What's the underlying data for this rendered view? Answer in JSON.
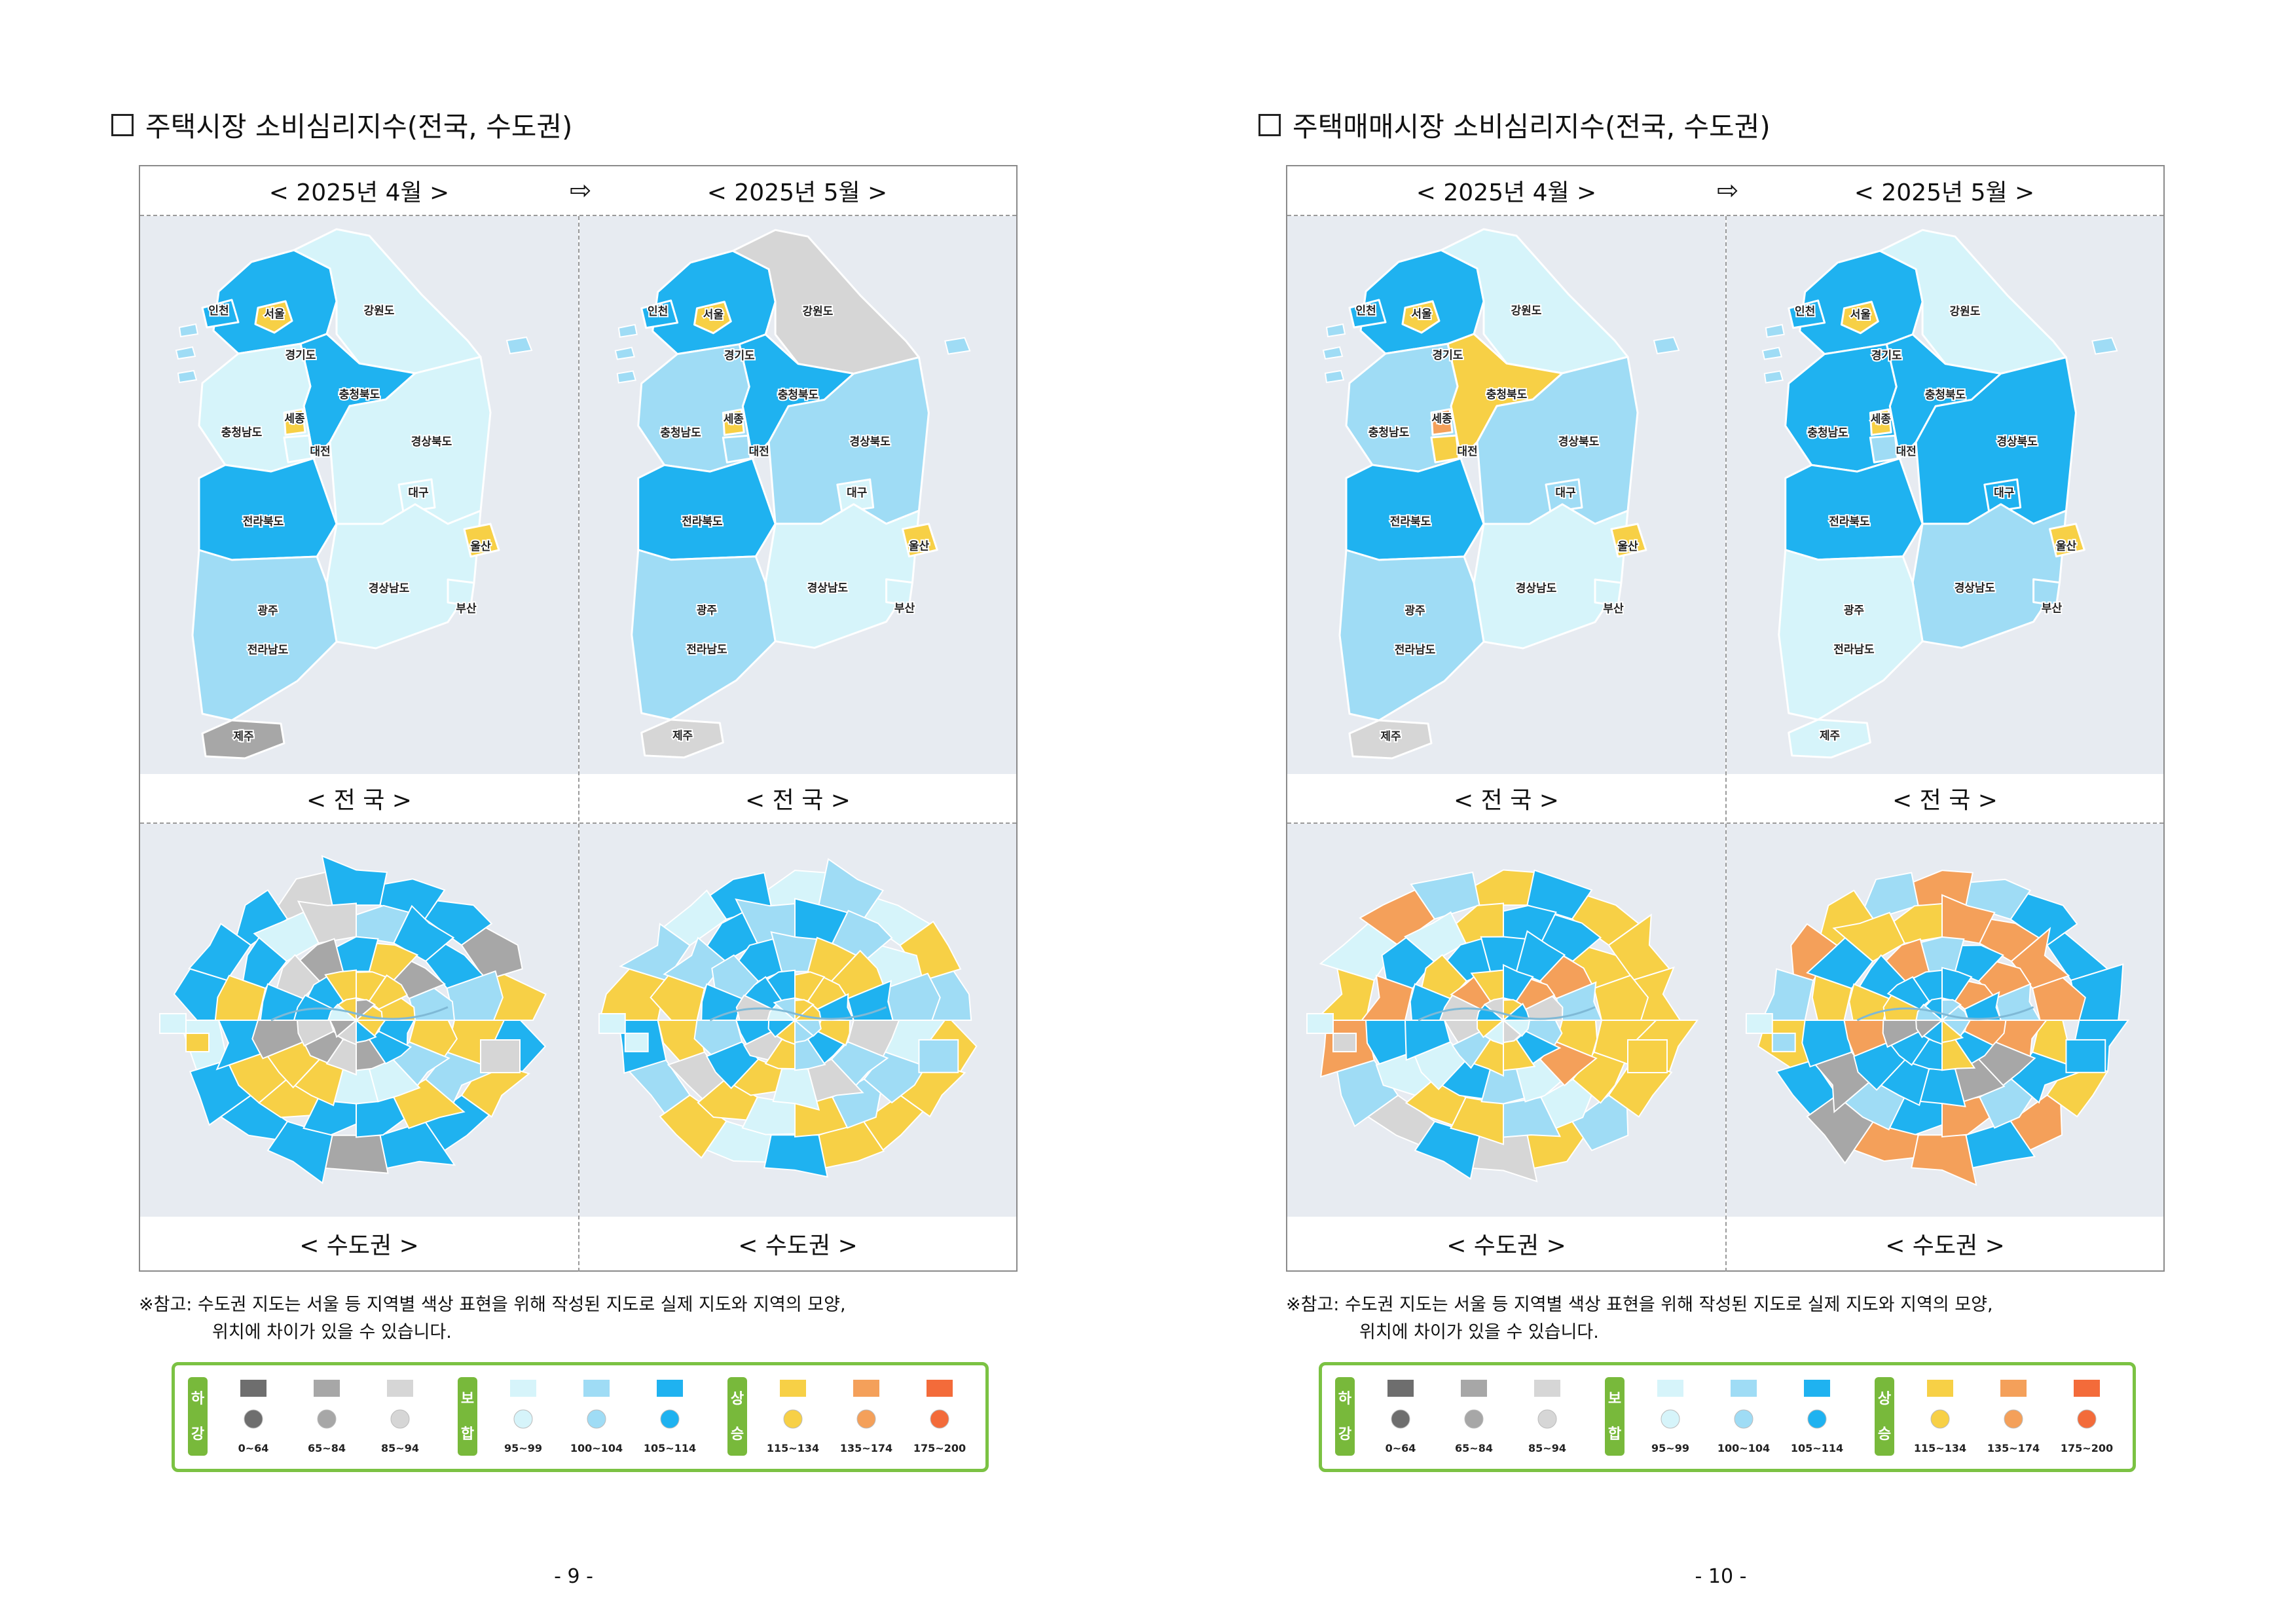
{
  "pages": [
    {
      "title": "주택시장 소비심리지수(전국, 수도권)",
      "col_headers": [
        "< 2025년 4월 >",
        "< 2025년 5월 >"
      ],
      "arrow": "⇨",
      "row_captions": [
        "< 전  국 >",
        "< 수도권 >"
      ],
      "note_line1": "※참고: 수도권 지도는 서울 등 지역별 색상 표현을 위해 작성된 지도로 실제 지도와 지역의 모양,",
      "note_line2": "위치에 차이가 있을 수 있습니다.",
      "page_number": "- 9 -",
      "national_maps": [
        {
          "인천": "L3",
          "서울": "Y1",
          "경기도": "L3",
          "강원도": "L1",
          "충청북도": "L3",
          "세종": "Y1",
          "충청남도": "L1",
          "대전": "L1",
          "경상북도": "L1",
          "대구": "L1",
          "전라북도": "L3",
          "울산": "Y1",
          "경상남도": "L1",
          "부산": "L1",
          "광주": "L2",
          "전라남도": "L2",
          "제주": "G2"
        },
        {
          "인천": "L3",
          "서울": "Y1",
          "경기도": "L3",
          "강원도": "G3",
          "충청북도": "L3",
          "세종": "Y1",
          "충청남도": "L2",
          "대전": "L2",
          "경상북도": "L2",
          "대구": "L1",
          "전라북도": "L3",
          "울산": "Y1",
          "경상남도": "L1",
          "부산": "L1",
          "광주": "L2",
          "전라남도": "L2",
          "제주": "G3"
        }
      ],
      "metro_maps": [
        "p9a",
        "p9b"
      ]
    },
    {
      "title": "주택매매시장 소비심리지수(전국, 수도권)",
      "col_headers": [
        "< 2025년 4월 >",
        "< 2025년 5월 >"
      ],
      "arrow": "⇨",
      "row_captions": [
        "< 전  국 >",
        "< 수도권 >"
      ],
      "note_line1": "※참고: 수도권 지도는 서울 등 지역별 색상 표현을 위해 작성된 지도로 실제 지도와 지역의 모양,",
      "note_line2": "위치에 차이가 있을 수 있습니다.",
      "page_number": "- 10 -",
      "national_maps": [
        {
          "인천": "L3",
          "서울": "Y1",
          "경기도": "L3",
          "강원도": "L1",
          "충청북도": "Y1",
          "세종": "Y2",
          "충청남도": "L2",
          "대전": "Y1",
          "경상북도": "L2",
          "대구": "L2",
          "전라북도": "L3",
          "울산": "Y1",
          "경상남도": "L1",
          "부산": "L1",
          "광주": "L2",
          "전라남도": "L2",
          "제주": "G3"
        },
        {
          "인천": "L3",
          "서울": "Y1",
          "경기도": "L3",
          "강원도": "L1",
          "충청북도": "L3",
          "세종": "Y1",
          "충청남도": "L3",
          "대전": "L2",
          "경상북도": "L3",
          "대구": "L3",
          "전라북도": "L3",
          "울산": "Y1",
          "경상남도": "L2",
          "부산": "L2",
          "광주": "L1",
          "전라남도": "L1",
          "제주": "L1"
        }
      ],
      "metro_maps": [
        "p10a",
        "p10b"
      ]
    }
  ],
  "legend": {
    "groups": [
      {
        "label_top": "하",
        "label_bottom": "강",
        "items": [
          {
            "range": "0~64",
            "color": "#6e6e6e"
          },
          {
            "range": "65~84",
            "color": "#a7a7a7"
          },
          {
            "range": "85~94",
            "color": "#d6d6d6"
          }
        ]
      },
      {
        "label_top": "보",
        "label_bottom": "합",
        "items": [
          {
            "range": "95~99",
            "color": "#d6f4fa"
          },
          {
            "range": "100~104",
            "color": "#9fdcf5"
          },
          {
            "range": "105~114",
            "color": "#1fb2f0"
          }
        ]
      },
      {
        "label_top": "상",
        "label_bottom": "승",
        "items": [
          {
            "range": "115~134",
            "color": "#f7d046"
          },
          {
            "range": "135~174",
            "color": "#f4a05a"
          },
          {
            "range": "175~200",
            "color": "#f36b3a"
          }
        ]
      }
    ]
  },
  "colors": {
    "G1": "#6e6e6e",
    "G2": "#a7a7a7",
    "G3": "#d6d6d6",
    "L1": "#d6f4fa",
    "L2": "#9fdcf5",
    "L3": "#1fb2f0",
    "Y1": "#f7d046",
    "Y2": "#f4a05a",
    "Y3": "#f36b3a"
  }
}
